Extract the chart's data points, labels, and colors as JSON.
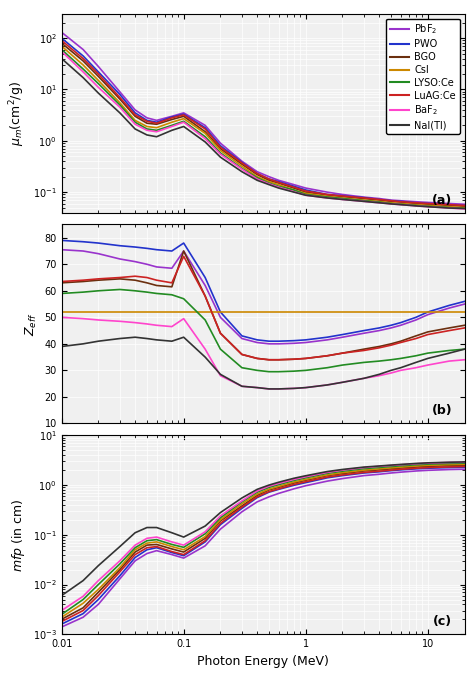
{
  "materials": [
    "PbF2",
    "PWO",
    "BGO",
    "CsI",
    "LYSO:Ce",
    "LuAG:Ce",
    "BaF2",
    "NaI(Tl)"
  ],
  "colors": [
    "#9933CC",
    "#2233CC",
    "#6B2F0F",
    "#CC8800",
    "#228B22",
    "#CC2222",
    "#FF44CC",
    "#333333"
  ],
  "legend_labels": [
    "PbF$_2$",
    "PWO",
    "BGO",
    "CsI",
    "LYSO:Ce",
    "LuAG:Ce",
    "BaF$_2$",
    "NaI(Tl)"
  ],
  "xlabel": "Photon Energy (MeV)",
  "ylabel_a": "$\\mu_m$(cm$^2$/g)",
  "ylabel_b": "$Z_{eff}$",
  "ylabel_c": "$mfp$ (in cm)",
  "label_a": "(a)",
  "label_b": "(b)",
  "label_c": "(c)",
  "energy": [
    0.01,
    0.015,
    0.02,
    0.03,
    0.04,
    0.05,
    0.06,
    0.08,
    0.1,
    0.15,
    0.2,
    0.3,
    0.4,
    0.5,
    0.6,
    0.8,
    1.0,
    1.5,
    2.0,
    3.0,
    4.0,
    5.0,
    6.0,
    8.0,
    10.0,
    15.0,
    20.0
  ],
  "mu_PbF2": [
    130,
    60,
    28,
    9.0,
    4.0,
    2.8,
    2.5,
    3.0,
    3.5,
    2.0,
    0.9,
    0.4,
    0.25,
    0.2,
    0.17,
    0.14,
    0.12,
    0.1,
    0.09,
    0.08,
    0.075,
    0.07,
    0.068,
    0.065,
    0.063,
    0.06,
    0.058
  ],
  "mu_PWO": [
    100,
    45,
    22,
    8.0,
    3.5,
    2.5,
    2.3,
    2.9,
    3.3,
    1.8,
    0.8,
    0.38,
    0.23,
    0.18,
    0.16,
    0.13,
    0.11,
    0.09,
    0.085,
    0.078,
    0.072,
    0.068,
    0.066,
    0.062,
    0.06,
    0.057,
    0.055
  ],
  "mu_BGO": [
    80,
    36,
    18,
    6.5,
    3.0,
    2.2,
    2.1,
    2.6,
    3.0,
    1.5,
    0.7,
    0.35,
    0.22,
    0.17,
    0.15,
    0.12,
    0.1,
    0.088,
    0.082,
    0.075,
    0.07,
    0.066,
    0.064,
    0.06,
    0.058,
    0.055,
    0.053
  ],
  "mu_CsI": [
    70,
    30,
    15,
    5.5,
    2.5,
    1.9,
    1.8,
    2.3,
    2.7,
    1.4,
    0.65,
    0.32,
    0.2,
    0.16,
    0.14,
    0.11,
    0.095,
    0.083,
    0.077,
    0.07,
    0.066,
    0.062,
    0.06,
    0.057,
    0.055,
    0.052,
    0.05
  ],
  "mu_LYSO": [
    60,
    25,
    13,
    5.0,
    2.3,
    1.7,
    1.6,
    2.0,
    2.4,
    1.2,
    0.58,
    0.29,
    0.19,
    0.15,
    0.13,
    0.11,
    0.09,
    0.08,
    0.075,
    0.068,
    0.064,
    0.06,
    0.058,
    0.055,
    0.053,
    0.05,
    0.048
  ],
  "mu_LuAG": [
    90,
    40,
    20,
    7.0,
    3.2,
    2.4,
    2.2,
    2.8,
    3.2,
    1.7,
    0.75,
    0.37,
    0.23,
    0.18,
    0.155,
    0.125,
    0.105,
    0.09,
    0.084,
    0.077,
    0.072,
    0.068,
    0.065,
    0.062,
    0.06,
    0.057,
    0.055
  ],
  "mu_BaF2": [
    55,
    22,
    11,
    4.5,
    2.1,
    1.6,
    1.5,
    1.9,
    2.3,
    1.1,
    0.55,
    0.28,
    0.18,
    0.145,
    0.125,
    0.102,
    0.087,
    0.077,
    0.072,
    0.066,
    0.062,
    0.059,
    0.057,
    0.054,
    0.052,
    0.049,
    0.047
  ],
  "mu_NaI": [
    40,
    17,
    8.5,
    3.5,
    1.7,
    1.3,
    1.2,
    1.6,
    1.9,
    0.95,
    0.48,
    0.25,
    0.17,
    0.14,
    0.12,
    0.1,
    0.087,
    0.077,
    0.072,
    0.066,
    0.062,
    0.059,
    0.057,
    0.054,
    0.052,
    0.049,
    0.048
  ],
  "zeff_PbF2": [
    75.5,
    75.0,
    74.0,
    72.0,
    71.0,
    70.0,
    69.0,
    68.5,
    75.0,
    62.0,
    50.0,
    42.0,
    40.5,
    40.0,
    40.0,
    40.2,
    40.5,
    41.5,
    42.5,
    44.0,
    45.0,
    46.0,
    47.0,
    49.0,
    51.0,
    53.5,
    55.0
  ],
  "zeff_PWO": [
    79.0,
    78.5,
    78.0,
    77.0,
    76.5,
    76.0,
    75.5,
    75.0,
    78.0,
    65.0,
    52.0,
    43.0,
    41.5,
    41.0,
    41.0,
    41.2,
    41.5,
    42.5,
    43.5,
    45.0,
    46.0,
    47.0,
    48.0,
    50.0,
    52.0,
    54.5,
    56.0
  ],
  "zeff_BGO": [
    63.0,
    63.5,
    64.0,
    64.5,
    64.0,
    63.0,
    62.0,
    61.5,
    75.0,
    58.0,
    44.0,
    36.0,
    34.5,
    34.0,
    34.0,
    34.2,
    34.5,
    35.5,
    36.5,
    38.0,
    39.0,
    40.0,
    41.0,
    43.0,
    44.5,
    46.0,
    47.0
  ],
  "zeff_CsI": [
    52.0,
    52.0,
    52.0,
    52.0,
    52.0,
    52.0,
    52.0,
    52.0,
    52.0,
    52.0,
    52.0,
    52.0,
    52.0,
    52.0,
    52.0,
    52.0,
    52.0,
    52.0,
    52.0,
    52.0,
    52.0,
    52.0,
    52.0,
    52.0,
    52.0,
    52.0,
    52.0
  ],
  "zeff_LYSO": [
    59.0,
    59.5,
    60.0,
    60.5,
    60.0,
    59.5,
    59.0,
    58.5,
    57.0,
    49.0,
    38.0,
    31.0,
    30.0,
    29.5,
    29.5,
    29.7,
    30.0,
    31.0,
    32.0,
    33.0,
    33.5,
    34.0,
    34.5,
    35.5,
    36.5,
    37.5,
    38.0
  ],
  "zeff_LuAG": [
    63.5,
    64.0,
    64.5,
    65.0,
    65.5,
    65.0,
    64.0,
    63.0,
    73.0,
    58.0,
    44.0,
    36.0,
    34.5,
    34.0,
    34.0,
    34.2,
    34.5,
    35.5,
    36.5,
    37.5,
    38.5,
    39.5,
    40.5,
    42.0,
    43.5,
    45.0,
    46.0
  ],
  "zeff_BaF2": [
    50.0,
    49.5,
    49.0,
    48.5,
    48.0,
    47.5,
    47.0,
    46.5,
    49.5,
    38.0,
    28.0,
    24.0,
    23.5,
    23.0,
    23.0,
    23.2,
    23.5,
    24.5,
    25.5,
    27.0,
    28.0,
    29.0,
    30.0,
    31.0,
    32.0,
    33.5,
    34.0
  ],
  "zeff_NaI": [
    39.0,
    40.0,
    41.0,
    42.0,
    42.5,
    42.0,
    41.5,
    41.0,
    42.5,
    35.0,
    28.5,
    24.0,
    23.5,
    23.0,
    23.0,
    23.2,
    23.5,
    24.5,
    25.5,
    27.0,
    28.5,
    30.0,
    31.0,
    33.0,
    34.5,
    36.5,
    38.0
  ],
  "mfp_PbF2": [
    0.0014,
    0.0022,
    0.004,
    0.013,
    0.03,
    0.042,
    0.048,
    0.04,
    0.034,
    0.06,
    0.13,
    0.29,
    0.46,
    0.58,
    0.68,
    0.84,
    0.97,
    1.2,
    1.35,
    1.55,
    1.65,
    1.75,
    1.82,
    1.92,
    1.98,
    2.05,
    2.08
  ],
  "mfp_PWO": [
    0.0016,
    0.0026,
    0.005,
    0.015,
    0.035,
    0.05,
    0.055,
    0.044,
    0.038,
    0.072,
    0.16,
    0.34,
    0.56,
    0.72,
    0.82,
    0.99,
    1.12,
    1.4,
    1.55,
    1.75,
    1.85,
    1.95,
    2.02,
    2.12,
    2.18,
    2.25,
    2.28
  ],
  "mfp_BGO": [
    0.002,
    0.0034,
    0.007,
    0.02,
    0.045,
    0.062,
    0.064,
    0.052,
    0.045,
    0.085,
    0.19,
    0.38,
    0.62,
    0.8,
    0.9,
    1.1,
    1.25,
    1.55,
    1.7,
    1.92,
    2.02,
    2.12,
    2.2,
    2.3,
    2.38,
    2.45,
    2.5
  ],
  "mfp_CsI": [
    0.0022,
    0.0042,
    0.008,
    0.022,
    0.05,
    0.068,
    0.072,
    0.058,
    0.05,
    0.092,
    0.2,
    0.42,
    0.66,
    0.83,
    0.94,
    1.15,
    1.3,
    1.6,
    1.78,
    2.0,
    2.12,
    2.22,
    2.3,
    2.42,
    2.5,
    2.58,
    2.62
  ],
  "mfp_LYSO": [
    0.0025,
    0.005,
    0.01,
    0.026,
    0.055,
    0.076,
    0.08,
    0.064,
    0.056,
    0.105,
    0.22,
    0.46,
    0.72,
    0.9,
    1.02,
    1.24,
    1.4,
    1.72,
    1.9,
    2.14,
    2.26,
    2.36,
    2.44,
    2.56,
    2.64,
    2.72,
    2.76
  ],
  "mfp_LuAG": [
    0.0018,
    0.003,
    0.006,
    0.018,
    0.04,
    0.055,
    0.058,
    0.046,
    0.04,
    0.076,
    0.17,
    0.36,
    0.58,
    0.74,
    0.84,
    1.03,
    1.17,
    1.45,
    1.6,
    1.8,
    1.9,
    2.0,
    2.08,
    2.18,
    2.25,
    2.32,
    2.36
  ],
  "mfp_BaF2": [
    0.003,
    0.0058,
    0.012,
    0.03,
    0.062,
    0.085,
    0.09,
    0.072,
    0.062,
    0.115,
    0.24,
    0.48,
    0.76,
    0.95,
    1.08,
    1.3,
    1.47,
    1.8,
    2.0,
    2.25,
    2.38,
    2.48,
    2.56,
    2.68,
    2.76,
    2.85,
    2.88
  ],
  "mfp_NaI": [
    0.006,
    0.012,
    0.024,
    0.058,
    0.11,
    0.14,
    0.14,
    0.11,
    0.09,
    0.15,
    0.28,
    0.55,
    0.82,
    1.0,
    1.14,
    1.37,
    1.54,
    1.87,
    2.06,
    2.3,
    2.42,
    2.52,
    2.6,
    2.72,
    2.8,
    2.88,
    2.92
  ]
}
